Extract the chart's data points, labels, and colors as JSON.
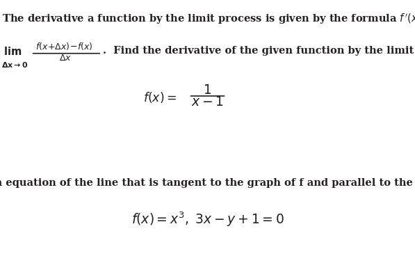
{
  "bg_color": "#ffffff",
  "text_color": "#231f20",
  "fig_width": 5.97,
  "fig_height": 3.78,
  "dpi": 100,
  "font_size_main": 10.5,
  "font_size_formula_a": 12.5,
  "font_size_formula_b": 13.5
}
